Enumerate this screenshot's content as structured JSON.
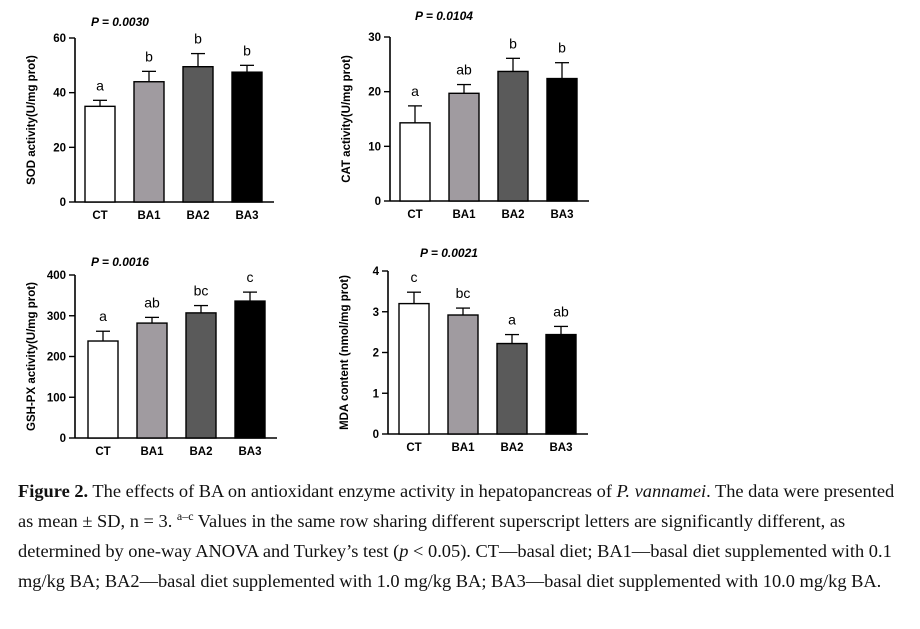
{
  "chart_data": [
    {
      "type": "bar",
      "categories": [
        "CT",
        "BA1",
        "BA2",
        "BA3"
      ],
      "values": [
        35,
        44,
        49.5,
        47.5
      ],
      "errors": [
        2.2,
        3.8,
        4.8,
        2.5
      ],
      "letters": [
        "a",
        "b",
        "b",
        "b"
      ],
      "pvalue": "P = 0.0030",
      "ylabel": "SOD activity(U/mg prot)",
      "ylim": [
        0,
        60
      ],
      "yticks": [
        0,
        20,
        40,
        60
      ],
      "bar_colors": [
        "#ffffff",
        "#a09ba0",
        "#5a5a5a",
        "#000000"
      ]
    },
    {
      "type": "bar",
      "categories": [
        "CT",
        "BA1",
        "BA2",
        "BA3"
      ],
      "values": [
        14.3,
        19.7,
        23.7,
        22.4
      ],
      "errors": [
        3.1,
        1.6,
        2.4,
        2.9
      ],
      "letters": [
        "a",
        "ab",
        "b",
        "b"
      ],
      "pvalue": "P = 0.0104",
      "ylabel": "CAT activity(U/mg prot)",
      "ylim": [
        0,
        30
      ],
      "yticks": [
        0,
        10,
        20,
        30
      ],
      "bar_colors": [
        "#ffffff",
        "#a09ba0",
        "#5a5a5a",
        "#000000"
      ]
    },
    {
      "type": "bar",
      "categories": [
        "CT",
        "BA1",
        "BA2",
        "BA3"
      ],
      "values": [
        238,
        282,
        307,
        336
      ],
      "errors": [
        24,
        14,
        18,
        22
      ],
      "letters": [
        "a",
        "ab",
        "bc",
        "c"
      ],
      "pvalue": "P = 0.0016",
      "ylabel": "GSH-PX activity(U/mg prot)",
      "ylim": [
        0,
        400
      ],
      "yticks": [
        0,
        100,
        200,
        300,
        400
      ],
      "bar_colors": [
        "#ffffff",
        "#a09ba0",
        "#5a5a5a",
        "#000000"
      ]
    },
    {
      "type": "bar",
      "categories": [
        "CT",
        "BA1",
        "BA2",
        "BA3"
      ],
      "values": [
        3.2,
        2.92,
        2.22,
        2.44
      ],
      "errors": [
        0.28,
        0.17,
        0.22,
        0.2
      ],
      "letters": [
        "c",
        "bc",
        "a",
        "ab"
      ],
      "pvalue": "P = 0.0021",
      "ylabel": "MDA content (nmol/mg prot)",
      "ylim": [
        0,
        4
      ],
      "yticks": [
        0,
        1,
        2,
        3,
        4
      ],
      "bar_colors": [
        "#ffffff",
        "#a09ba0",
        "#5a5a5a",
        "#000000"
      ]
    }
  ],
  "caption": {
    "label": "Figure 2.",
    "text_1": " The effects of BA on antioxidant enzyme activity in hepatopancreas of ",
    "species": "P. vannamei",
    "text_2": ". The data were presented as mean ± SD, n = 3. ",
    "superscript": "a–c",
    "text_3": " Values in the same row sharing different superscript letters are significantly different, as determined by one-way ANOVA and Turkey’s test (",
    "p_symbol": "p",
    "text_4": " < 0.05). CT—basal diet; BA1—basal diet supplemented with 0.1 mg/kg BA; BA2—basal diet supplemented with 1.0 mg/kg BA; BA3—basal diet supplemented with 10.0 mg/kg BA."
  }
}
